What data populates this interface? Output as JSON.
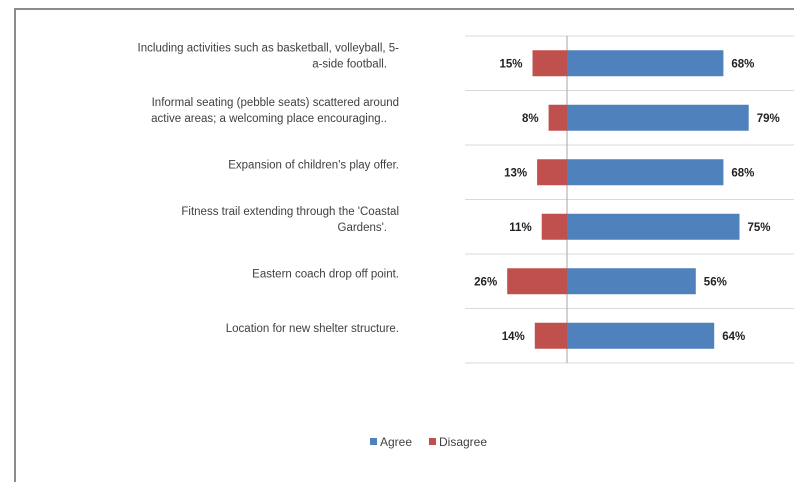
{
  "chart_data": {
    "type": "bar",
    "orientation": "horizontal",
    "stacked": "diverging",
    "categories": [
      [
        "Including activities such as basketball, volleyball, 5-",
        "a-side football."
      ],
      [
        "Informal seating (pebble seats) scattered around",
        "active areas; a welcoming place encouraging.."
      ],
      [
        "Expansion of children's play offer."
      ],
      [
        "Fitness trail extending through the 'Coastal",
        "Gardens'."
      ],
      [
        "Eastern coach drop off point."
      ],
      [
        "Location for new shelter structure."
      ]
    ],
    "series": [
      {
        "name": "Agree",
        "color": "#4f81bd",
        "values": [
          68,
          79,
          68,
          75,
          56,
          64
        ],
        "labels": [
          "68%",
          "79%",
          "68%",
          "75%",
          "56%",
          "64%"
        ]
      },
      {
        "name": "Disagree",
        "color": "#c0504d",
        "values": [
          15,
          8,
          13,
          11,
          26,
          14
        ],
        "labels": [
          "15%",
          "8%",
          "13%",
          "11%",
          "26%",
          "14%"
        ]
      }
    ],
    "legend": {
      "position": "bottom",
      "items": [
        "Agree",
        "Disagree"
      ]
    },
    "grid": "horizontal separators",
    "xlim": [
      -30,
      95
    ]
  }
}
